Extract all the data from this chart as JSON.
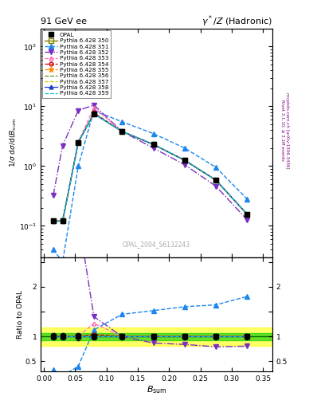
{
  "title_left": "91 GeV ee",
  "title_right": "γ*/Z (Hadronic)",
  "xlabel": "B_{sum}",
  "ylabel_main": "1/σ dσ/d(B_{sum}",
  "ylabel_ratio": "Ratio to OPAL",
  "watermark": "OPAL_2004_S6132243",
  "right_label1": "Rivet 3.1.10; ≥ 3.1M events",
  "right_label2": "mcplots.cern.ch [arXiv:1306.3436]",
  "xp": [
    0.015,
    0.03,
    0.055,
    0.08,
    0.125,
    0.175,
    0.225,
    0.275,
    0.325
  ],
  "opal_y": [
    0.12,
    0.12,
    2.5,
    7.5,
    3.8,
    2.3,
    1.25,
    0.58,
    0.155
  ],
  "opal_err": [
    0.008,
    0.008,
    0.18,
    0.4,
    0.22,
    0.12,
    0.07,
    0.035,
    0.009
  ],
  "p350_y": [
    0.12,
    0.12,
    2.5,
    7.5,
    3.8,
    2.3,
    1.25,
    0.58,
    0.155
  ],
  "p351_y": [
    0.04,
    0.025,
    1.0,
    8.5,
    5.5,
    3.5,
    2.0,
    0.95,
    0.28
  ],
  "p352_y": [
    0.32,
    2.2,
    8.5,
    10.5,
    3.8,
    2.0,
    1.05,
    0.46,
    0.125
  ],
  "p353_y": [
    0.12,
    0.12,
    2.5,
    9.5,
    3.8,
    2.3,
    1.25,
    0.58,
    0.155
  ],
  "p354_y": [
    0.12,
    0.12,
    2.5,
    7.8,
    3.8,
    2.3,
    1.25,
    0.58,
    0.155
  ],
  "p355_y": [
    0.12,
    0.12,
    2.5,
    7.5,
    3.8,
    2.3,
    1.25,
    0.58,
    0.155
  ],
  "p356_y": [
    0.12,
    0.12,
    2.5,
    7.5,
    3.8,
    2.3,
    1.25,
    0.58,
    0.155
  ],
  "p357_y": [
    0.12,
    0.12,
    2.5,
    7.5,
    3.8,
    2.3,
    1.25,
    0.58,
    0.155
  ],
  "p358_y": [
    0.12,
    0.12,
    2.5,
    7.5,
    3.8,
    2.3,
    1.25,
    0.58,
    0.155
  ],
  "p359_y": [
    0.12,
    0.12,
    2.5,
    7.5,
    3.8,
    2.3,
    1.25,
    0.58,
    0.155
  ],
  "colors": {
    "opal": "#000000",
    "p350": "#808000",
    "p351": "#1c86ee",
    "p352": "#7b2fbe",
    "p353": "#ff69b4",
    "p354": "#cc0000",
    "p355": "#ff8c00",
    "p356": "#6b8e00",
    "p357": "#cdcd00",
    "p358": "#1c3fcd",
    "p359": "#00cdcd"
  },
  "ratio_band_yellow": [
    0.82,
    1.18
  ],
  "ratio_band_green": [
    0.93,
    1.07
  ],
  "xlim": [
    -0.005,
    0.365
  ],
  "ylim_main": [
    0.03,
    200
  ],
  "ylim_ratio": [
    0.3,
    2.6
  ]
}
